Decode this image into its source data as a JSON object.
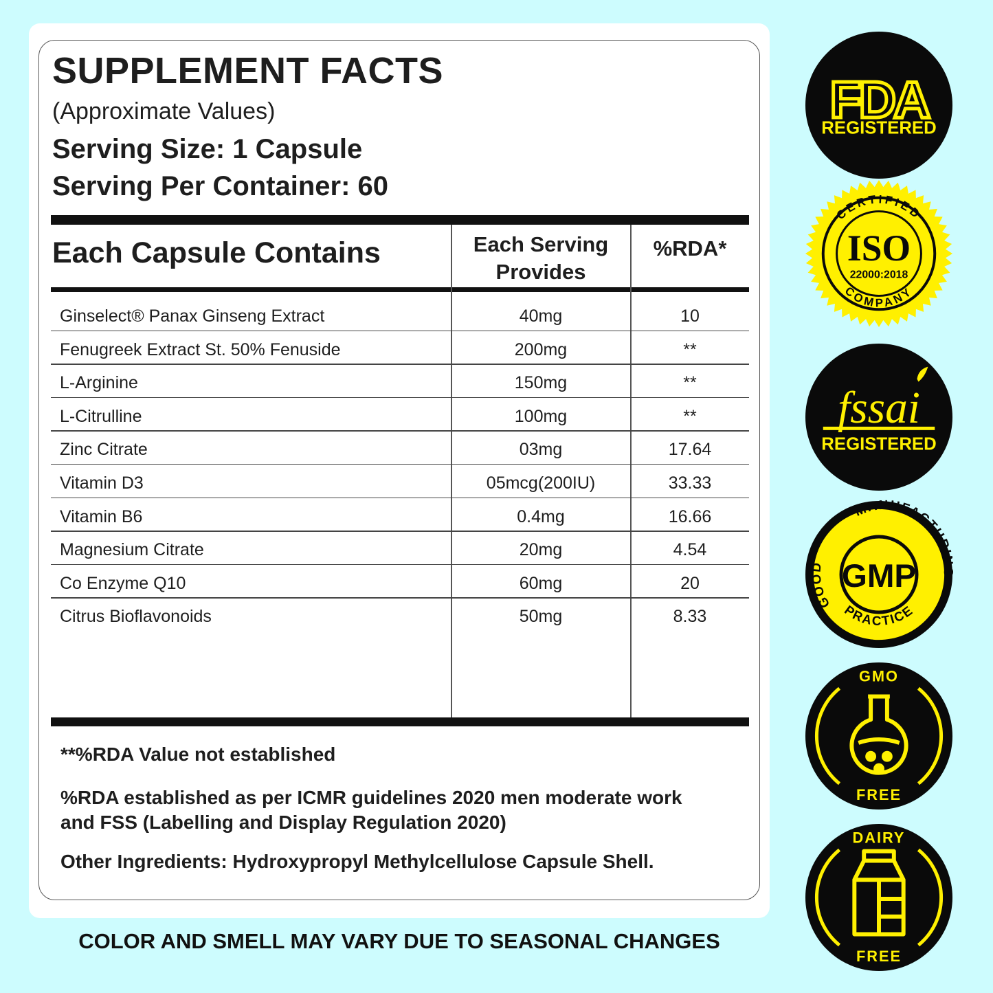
{
  "label": {
    "title": "SUPPLEMENT FACTS",
    "subtitle": "(Approximate Values)",
    "serving_size": "Serving Size: 1 Capsule",
    "servings_per_container": "Serving Per Container: 60"
  },
  "table": {
    "headers": {
      "ingredient": "Each Capsule Contains",
      "amount_line1": "Each Serving",
      "amount_line2": "Provides",
      "rda": "%RDA*"
    },
    "rows": [
      {
        "name": "Ginselect® Panax Ginseng Extract",
        "amount": "40mg",
        "rda": "10"
      },
      {
        "name": "Fenugreek Extract St. 50% Fenuside",
        "amount": "200mg",
        "rda": "**"
      },
      {
        "name": "L-Arginine",
        "amount": "150mg",
        "rda": "**"
      },
      {
        "name": "L-Citrulline",
        "amount": "100mg",
        "rda": "**"
      },
      {
        "name": "Zinc Citrate",
        "amount": "03mg",
        "rda": "17.64"
      },
      {
        "name": "Vitamin D3",
        "amount": "05mcg(200IU)",
        "rda": "33.33"
      },
      {
        "name": "Vitamin B6",
        "amount": "0.4mg",
        "rda": "16.66"
      },
      {
        "name": "Magnesium Citrate",
        "amount": "20mg",
        "rda": "4.54"
      },
      {
        "name": "Co Enzyme Q10",
        "amount": "60mg",
        "rda": "20"
      },
      {
        "name": "Citrus Bioflavonoids",
        "amount": "50mg",
        "rda": "8.33"
      }
    ]
  },
  "notes": {
    "rda_not_established": "**%RDA Value not established",
    "rda_basis_line1": "%RDA established as per ICMR guidelines 2020 men moderate work",
    "rda_basis_line2": "and FSS (Labelling and Display Regulation 2020)",
    "other_ingredients": "Other Ingredients: Hydroxypropyl Methylcellulose Capsule Shell."
  },
  "footer": "COLOR AND SMELL MAY VARY DUE TO SEASONAL CHANGES",
  "badges": {
    "fda": {
      "logo": "FDA",
      "text": "REGISTERED",
      "icon": "fda-badge-icon"
    },
    "iso": {
      "top": "CERTIFIED",
      "logo": "ISO",
      "code": "22000:2018",
      "bottom": "COMPANY",
      "icon": "iso-seal-icon"
    },
    "fssai": {
      "logo": "fssai",
      "text": "REGISTERED",
      "icon": "fssai-badge-icon"
    },
    "gmp": {
      "left": "GOOD",
      "top": "MANUFACTURING",
      "logo": "GMP",
      "bottom": "PRACTICE",
      "icon": "gmp-badge-icon"
    },
    "gmo": {
      "top": "GMO",
      "bottom": "FREE",
      "icon": "flask-icon"
    },
    "dairy": {
      "top": "DAIRY",
      "bottom": "FREE",
      "icon": "milk-carton-icon"
    }
  },
  "colors": {
    "background": "#cdfcfe",
    "badge_yellow": "#fff000",
    "badge_black": "#0a0a0a",
    "text": "#1e1e1e"
  }
}
